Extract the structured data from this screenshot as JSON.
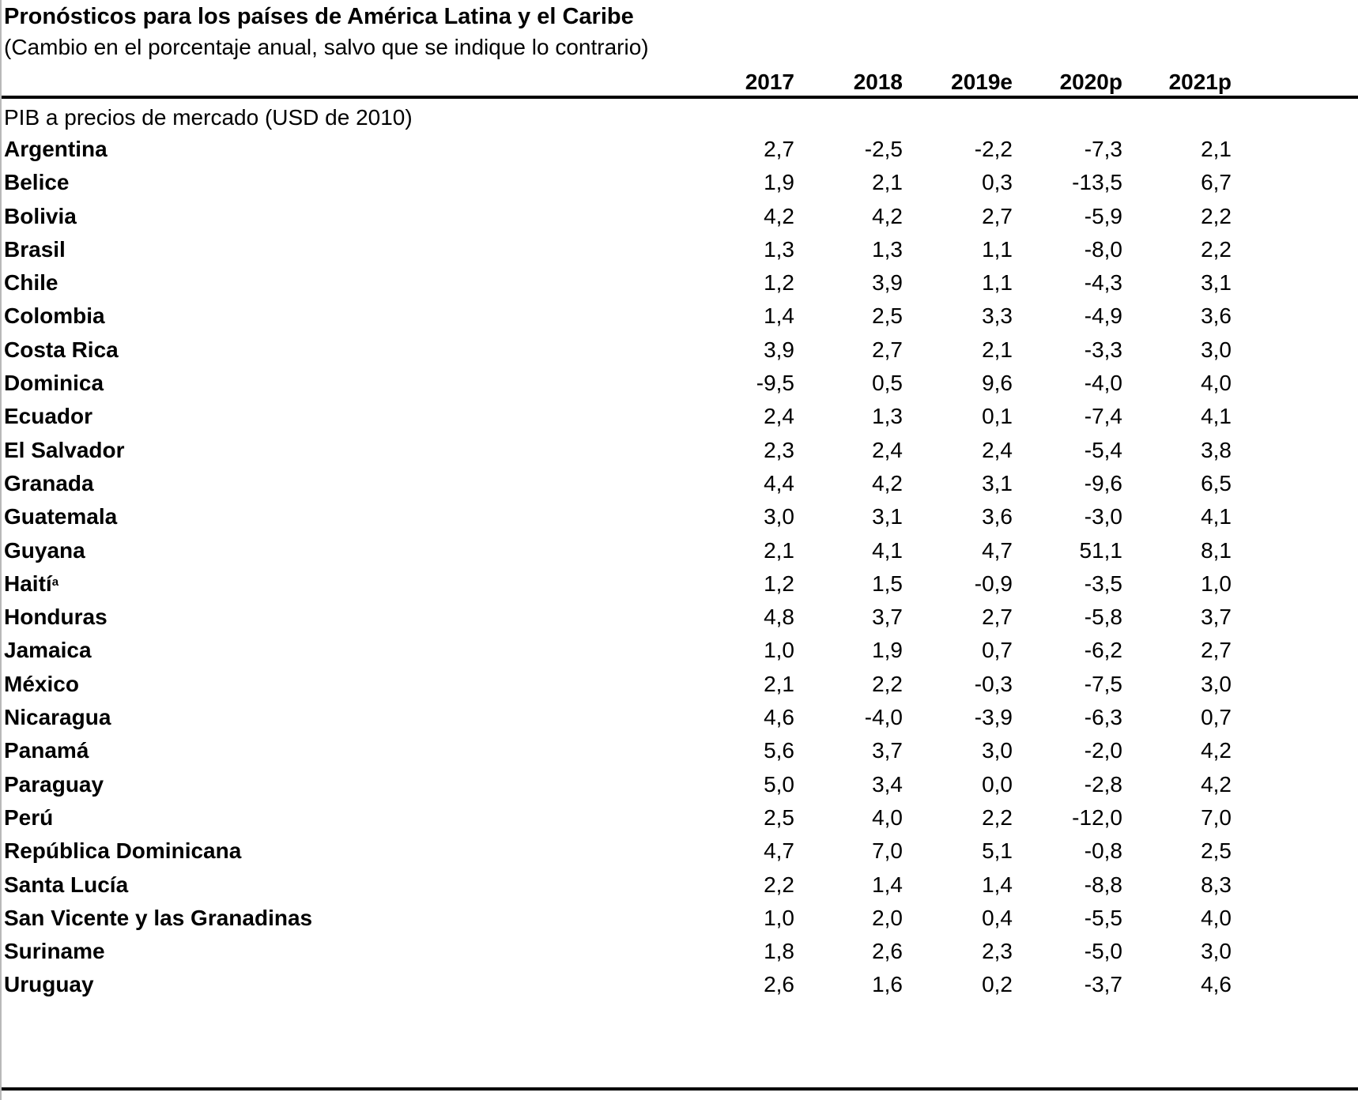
{
  "title": "Pronósticos para los países de América Latina y el Caribe",
  "subtitle": "(Cambio en el porcentaje anual, salvo que se indique lo contrario)",
  "columns": [
    "2017",
    "2018",
    "2019e",
    "2020p",
    "2021p"
  ],
  "section_label": "PIB a precios de mercado (USD de 2010)",
  "rows": [
    {
      "country": "Argentina",
      "sup": "",
      "values": [
        "2,7",
        "-2,5",
        "-2,2",
        "-7,3",
        "2,1"
      ]
    },
    {
      "country": "Belice",
      "sup": "",
      "values": [
        "1,9",
        "2,1",
        "0,3",
        "-13,5",
        "6,7"
      ]
    },
    {
      "country": "Bolivia",
      "sup": "",
      "values": [
        "4,2",
        "4,2",
        "2,7",
        "-5,9",
        "2,2"
      ]
    },
    {
      "country": "Brasil",
      "sup": "",
      "values": [
        "1,3",
        "1,3",
        "1,1",
        "-8,0",
        "2,2"
      ]
    },
    {
      "country": "Chile",
      "sup": "",
      "values": [
        "1,2",
        "3,9",
        "1,1",
        "-4,3",
        "3,1"
      ]
    },
    {
      "country": "Colombia",
      "sup": "",
      "values": [
        "1,4",
        "2,5",
        "3,3",
        "-4,9",
        "3,6"
      ]
    },
    {
      "country": "Costa Rica",
      "sup": "",
      "values": [
        "3,9",
        "2,7",
        "2,1",
        "-3,3",
        "3,0"
      ]
    },
    {
      "country": "Dominica",
      "sup": "",
      "values": [
        "-9,5",
        "0,5",
        "9,6",
        "-4,0",
        "4,0"
      ]
    },
    {
      "country": "Ecuador",
      "sup": "",
      "values": [
        "2,4",
        "1,3",
        "0,1",
        "-7,4",
        "4,1"
      ]
    },
    {
      "country": "El Salvador",
      "sup": "",
      "values": [
        "2,3",
        "2,4",
        "2,4",
        "-5,4",
        "3,8"
      ]
    },
    {
      "country": "Granada",
      "sup": "",
      "values": [
        "4,4",
        "4,2",
        "3,1",
        "-9,6",
        "6,5"
      ]
    },
    {
      "country": "Guatemala",
      "sup": "",
      "values": [
        "3,0",
        "3,1",
        "3,6",
        "-3,0",
        "4,1"
      ]
    },
    {
      "country": "Guyana",
      "sup": "",
      "values": [
        "2,1",
        "4,1",
        "4,7",
        "51,1",
        "8,1"
      ]
    },
    {
      "country": "Haití",
      "sup": "a",
      "values": [
        "1,2",
        "1,5",
        "-0,9",
        "-3,5",
        "1,0"
      ]
    },
    {
      "country": "Honduras",
      "sup": "",
      "values": [
        "4,8",
        "3,7",
        "2,7",
        "-5,8",
        "3,7"
      ]
    },
    {
      "country": "Jamaica",
      "sup": "",
      "values": [
        "1,0",
        "1,9",
        "0,7",
        "-6,2",
        "2,7"
      ]
    },
    {
      "country": "México",
      "sup": "",
      "values": [
        "2,1",
        "2,2",
        "-0,3",
        "-7,5",
        "3,0"
      ]
    },
    {
      "country": "Nicaragua",
      "sup": "",
      "values": [
        "4,6",
        "-4,0",
        "-3,9",
        "-6,3",
        "0,7"
      ]
    },
    {
      "country": "Panamá",
      "sup": "",
      "values": [
        "5,6",
        "3,7",
        "3,0",
        "-2,0",
        "4,2"
      ]
    },
    {
      "country": "Paraguay",
      "sup": "",
      "values": [
        "5,0",
        "3,4",
        "0,0",
        "-2,8",
        "4,2"
      ]
    },
    {
      "country": "Perú",
      "sup": "",
      "values": [
        "2,5",
        "4,0",
        "2,2",
        "-12,0",
        "7,0"
      ]
    },
    {
      "country": "República Dominicana",
      "sup": "",
      "values": [
        "4,7",
        "7,0",
        "5,1",
        "-0,8",
        "2,5"
      ]
    },
    {
      "country": "Santa Lucía",
      "sup": "",
      "values": [
        "2,2",
        "1,4",
        "1,4",
        "-8,8",
        "8,3"
      ]
    },
    {
      "country": "San Vicente y las Granadinas",
      "sup": "",
      "values": [
        "1,0",
        "2,0",
        "0,4",
        "-5,5",
        "4,0"
      ]
    },
    {
      "country": "Suriname",
      "sup": "",
      "values": [
        "1,8",
        "2,6",
        "2,3",
        "-5,0",
        "3,0"
      ]
    },
    {
      "country": "Uruguay",
      "sup": "",
      "values": [
        "2,6",
        "1,6",
        "0,2",
        "-3,7",
        "4,6"
      ]
    }
  ]
}
